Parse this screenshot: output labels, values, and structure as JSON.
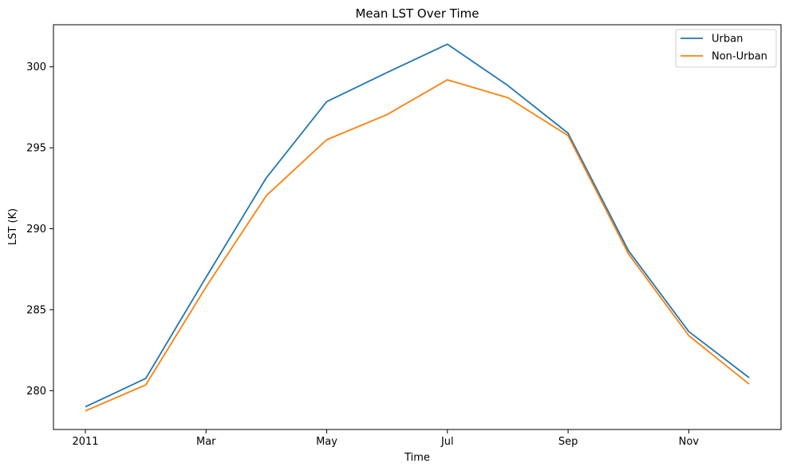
{
  "chart_data": {
    "type": "line",
    "title": "Mean LST Over Time",
    "xlabel": "Time",
    "ylabel": "LST (K)",
    "x": [
      "2011-01",
      "2011-02",
      "2011-03",
      "2011-04",
      "2011-05",
      "2011-06",
      "2011-07",
      "2011-08",
      "2011-09",
      "2011-10",
      "2011-11",
      "2011-12"
    ],
    "x_ticks": [
      {
        "label": "2011",
        "month": "2011-01"
      },
      {
        "label": "Mar",
        "month": "2011-03"
      },
      {
        "label": "May",
        "month": "2011-05"
      },
      {
        "label": "Jul",
        "month": "2011-07"
      },
      {
        "label": "Sep",
        "month": "2011-09"
      },
      {
        "label": "Nov",
        "month": "2011-11"
      }
    ],
    "ylim": [
      277.6,
      302.6
    ],
    "y_ticks": [
      280,
      285,
      290,
      295,
      300
    ],
    "grid": false,
    "legend_position": "top-right",
    "series": [
      {
        "name": "Urban",
        "color": "#1f77b4",
        "values": [
          279.0,
          280.75,
          287.0,
          293.15,
          297.85,
          299.65,
          301.4,
          298.85,
          295.9,
          288.65,
          283.65,
          280.8
        ]
      },
      {
        "name": "Non-Urban",
        "color": "#ff7f0e",
        "values": [
          278.75,
          280.35,
          286.4,
          292.05,
          295.5,
          297.05,
          299.2,
          298.1,
          295.75,
          288.45,
          283.4,
          280.4
        ]
      }
    ]
  }
}
